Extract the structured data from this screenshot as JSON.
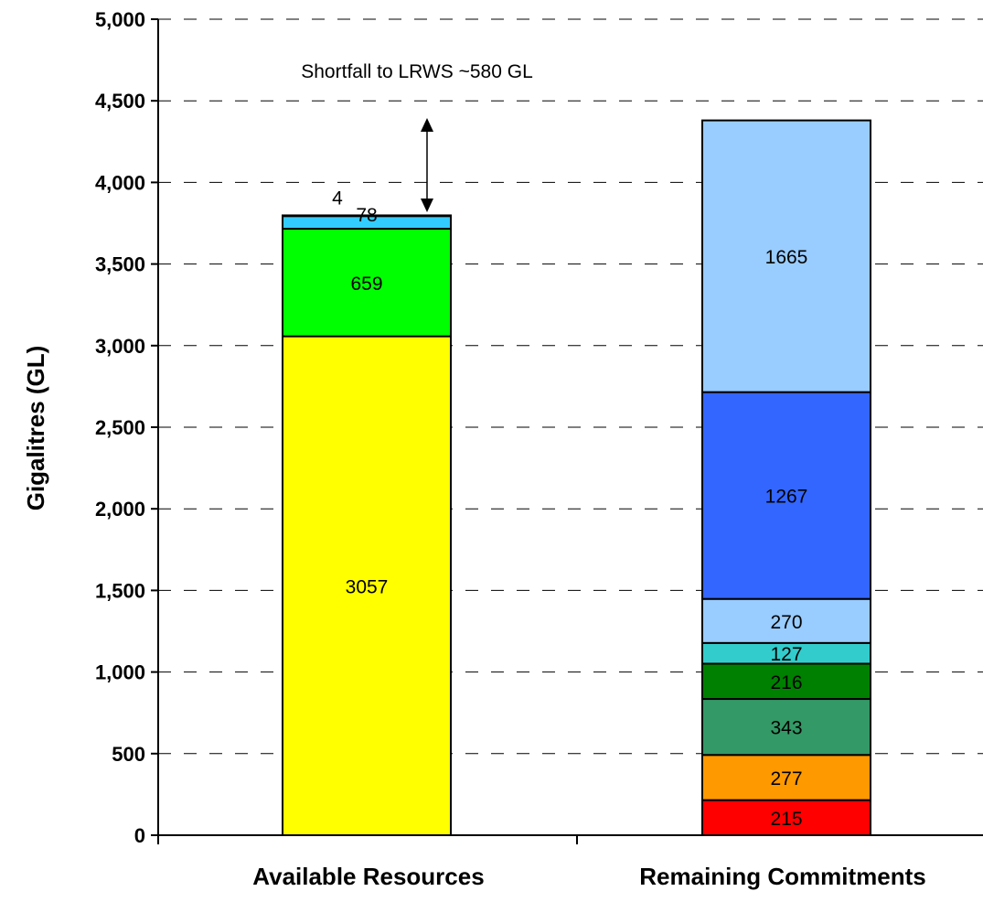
{
  "chart_data": {
    "type": "bar",
    "stacked": true,
    "categories": [
      "Available Resources",
      "Remaining Commitments"
    ],
    "ylabel": "Gigalitres (GL)",
    "xlabel": "",
    "ylim": [
      0,
      5000
    ],
    "yticks": [
      "0",
      "500",
      "1,000",
      "1,500",
      "2,000",
      "2,500",
      "3,000",
      "3,500",
      "4,000",
      "4,500",
      "5,000"
    ],
    "grid": true,
    "grid_style": "dashed",
    "annotation": "Shortfall to LRWS ~580 GL",
    "stacks": [
      {
        "category": "Available Resources",
        "segments": [
          {
            "value": 3057,
            "label": "3057",
            "color": "#ffff00"
          },
          {
            "value": 659,
            "label": "659",
            "color": "#00ff00"
          },
          {
            "value": 78,
            "label": "78",
            "color": "#33ccff"
          },
          {
            "value": 4,
            "label": "4",
            "color": "#000000"
          }
        ]
      },
      {
        "category": "Remaining Commitments",
        "segments": [
          {
            "value": 215,
            "label": "215",
            "color": "#ff0000"
          },
          {
            "value": 277,
            "label": "277",
            "color": "#ff9900"
          },
          {
            "value": 343,
            "label": "343",
            "color": "#339966"
          },
          {
            "value": 216,
            "label": "216",
            "color": "#008000"
          },
          {
            "value": 127,
            "label": "127",
            "color": "#33cccc"
          },
          {
            "value": 270,
            "label": "270",
            "color": "#99ccff"
          },
          {
            "value": 1267,
            "label": "1267",
            "color": "#3366ff"
          },
          {
            "value": 1665,
            "label": "1665",
            "color": "#99ccff"
          }
        ]
      }
    ]
  }
}
